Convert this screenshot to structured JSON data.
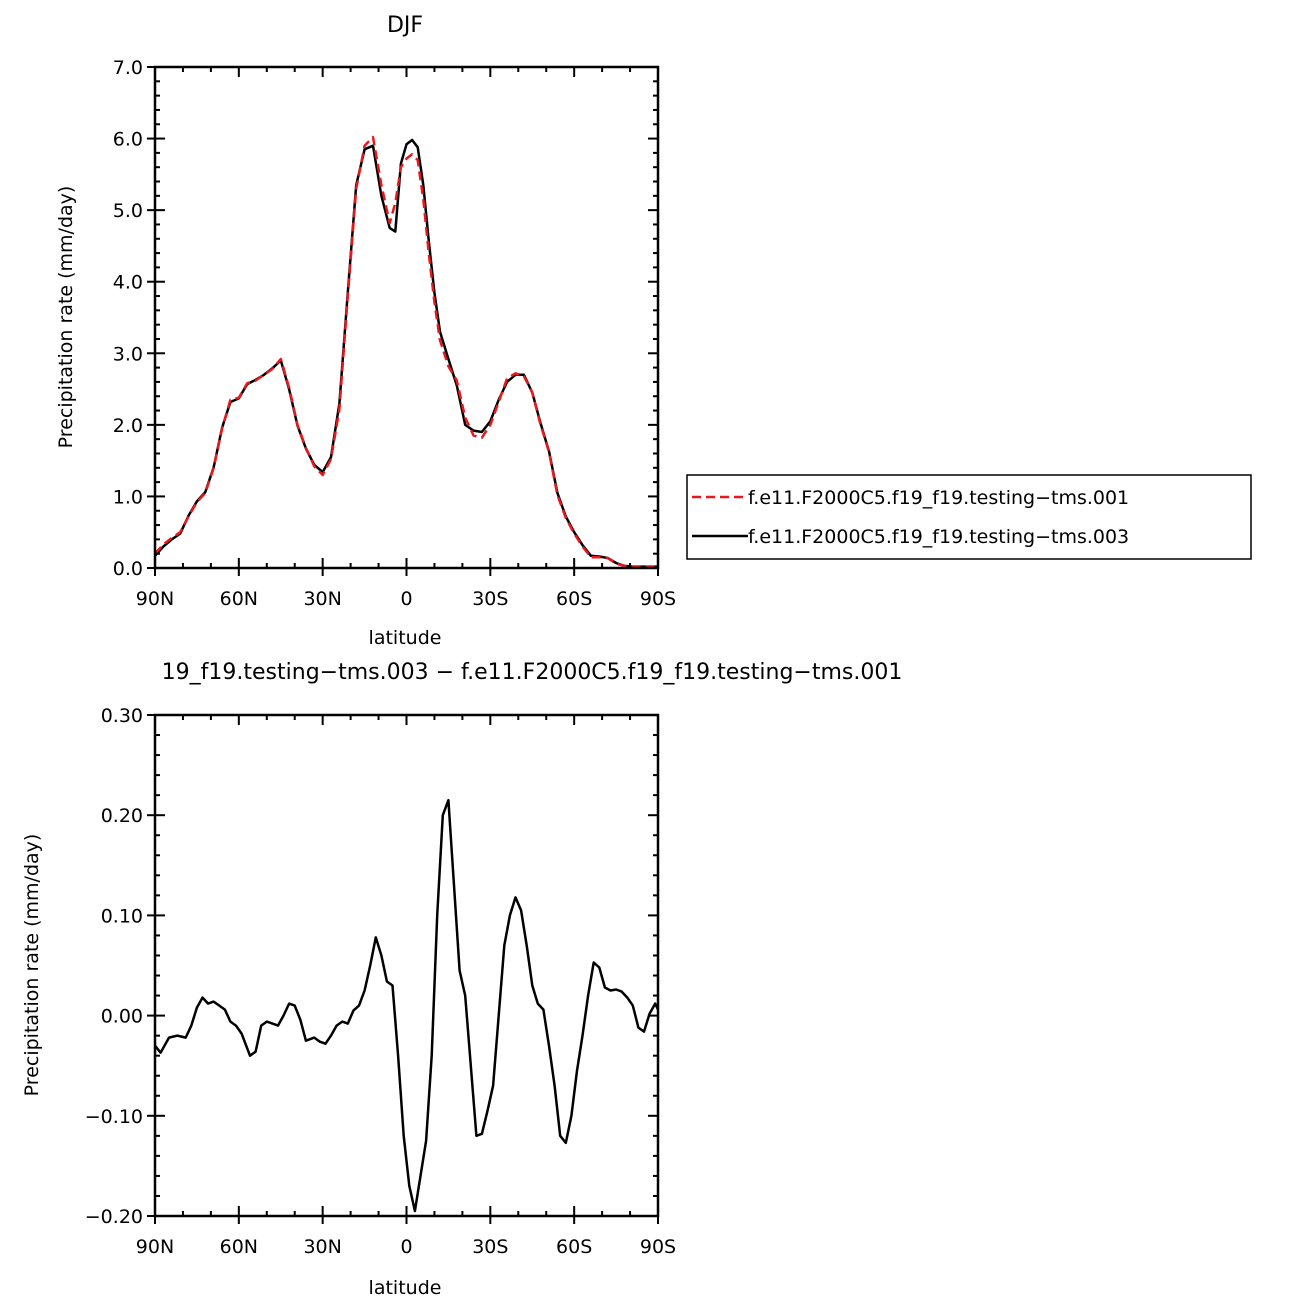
{
  "chart_data": [
    {
      "type": "line",
      "title": "DJF",
      "xlabel": "latitude",
      "ylabel": "Precipitation rate (mm/day)",
      "xlim": [
        -90,
        90
      ],
      "ylim": [
        0,
        7
      ],
      "x_ticks": [
        -90,
        -60,
        -30,
        0,
        30,
        60,
        90
      ],
      "x_tick_labels": [
        "90N",
        "60N",
        "30N",
        "0",
        "30S",
        "60S",
        "90S"
      ],
      "y_ticks": [
        0,
        1,
        2,
        3,
        4,
        5,
        6,
        7
      ],
      "y_tick_labels": [
        "0.0",
        "1.0",
        "2.0",
        "3.0",
        "4.0",
        "5.0",
        "6.0",
        "7.0"
      ],
      "grid": false,
      "legend_position": "right",
      "series": [
        {
          "name": "f.e11.F2000C5.f19_f19.testing−tms.001",
          "color": "#e8191e",
          "dash": "dashed",
          "x": [
            -90,
            -87,
            -84,
            -81,
            -78,
            -75,
            -72,
            -69,
            -66,
            -63,
            -60,
            -57,
            -54,
            -51,
            -48,
            -45,
            -42,
            -39,
            -36,
            -33,
            -30,
            -27,
            -24,
            -21,
            -18,
            -15,
            -12,
            -9,
            -6,
            -4,
            -2,
            0,
            2,
            4,
            6,
            8,
            10,
            12,
            15,
            18,
            21,
            24,
            27,
            30,
            33,
            36,
            39,
            42,
            45,
            48,
            51,
            54,
            57,
            60,
            63,
            66,
            69,
            72,
            75,
            78,
            81,
            84,
            87,
            90
          ],
          "y": [
            0.2,
            0.33,
            0.42,
            0.5,
            0.72,
            0.92,
            1.05,
            1.4,
            1.95,
            2.35,
            2.38,
            2.58,
            2.62,
            2.7,
            2.78,
            2.92,
            2.52,
            2.0,
            1.68,
            1.42,
            1.3,
            1.52,
            2.22,
            3.8,
            5.3,
            5.9,
            6.02,
            5.35,
            4.82,
            5.1,
            5.6,
            5.72,
            5.78,
            5.7,
            5.15,
            4.38,
            3.72,
            3.18,
            2.82,
            2.62,
            2.1,
            1.85,
            1.82,
            2.0,
            2.32,
            2.65,
            2.72,
            2.68,
            2.45,
            2.0,
            1.62,
            1.02,
            0.7,
            0.48,
            0.3,
            0.15,
            0.15,
            0.14,
            0.06,
            0.03,
            0.02,
            0.02,
            0.02,
            0.02
          ]
        },
        {
          "name": "f.e11.F2000C5.f19_f19.testing−tms.003",
          "color": "#000000",
          "dash": "solid",
          "x": [
            -90,
            -87,
            -84,
            -81,
            -78,
            -75,
            -72,
            -69,
            -66,
            -63,
            -60,
            -57,
            -54,
            -51,
            -48,
            -45,
            -42,
            -39,
            -36,
            -33,
            -30,
            -27,
            -24,
            -21,
            -18,
            -15,
            -12,
            -9,
            -6,
            -4,
            -2,
            0,
            2,
            4,
            6,
            8,
            10,
            12,
            15,
            18,
            21,
            24,
            27,
            30,
            33,
            36,
            39,
            42,
            45,
            48,
            51,
            54,
            57,
            60,
            63,
            66,
            69,
            72,
            75,
            78,
            81,
            84,
            87,
            90
          ],
          "y": [
            0.17,
            0.3,
            0.4,
            0.48,
            0.73,
            0.93,
            1.06,
            1.41,
            1.96,
            2.32,
            2.37,
            2.57,
            2.63,
            2.7,
            2.79,
            2.9,
            2.5,
            1.99,
            1.67,
            1.44,
            1.34,
            1.55,
            2.3,
            3.85,
            5.35,
            5.85,
            5.9,
            5.2,
            4.75,
            4.7,
            5.65,
            5.92,
            5.98,
            5.88,
            5.35,
            4.55,
            3.85,
            3.3,
            2.92,
            2.55,
            2.0,
            1.92,
            1.9,
            2.05,
            2.35,
            2.6,
            2.7,
            2.7,
            2.45,
            2.02,
            1.63,
            1.05,
            0.72,
            0.5,
            0.32,
            0.17,
            0.16,
            0.14,
            0.07,
            0.03,
            0.02,
            0.02,
            0.02,
            0.02
          ]
        }
      ]
    },
    {
      "type": "line",
      "title": "19_f19.testing−tms.003 − f.e11.F2000C5.f19_f19.testing−tms.001",
      "xlabel": "latitude",
      "ylabel": "Precipitation rate (mm/day)",
      "xlim": [
        -90,
        90
      ],
      "ylim": [
        -0.2,
        0.3
      ],
      "x_ticks": [
        -90,
        -60,
        -30,
        0,
        30,
        60,
        90
      ],
      "x_tick_labels": [
        "90N",
        "60N",
        "30N",
        "0",
        "30S",
        "60S",
        "90S"
      ],
      "y_ticks": [
        -0.2,
        -0.1,
        0.0,
        0.1,
        0.2,
        0.3
      ],
      "y_tick_labels": [
        "−0.20",
        "−0.10",
        "0.00",
        "0.10",
        "0.20",
        "0.30"
      ],
      "grid": false,
      "series": [
        {
          "color": "#000000",
          "dash": "solid",
          "x": [
            -90,
            -88,
            -85,
            -82,
            -79,
            -77,
            -75,
            -73,
            -71,
            -69,
            -67,
            -65,
            -63,
            -61,
            -59,
            -56,
            -54,
            -52,
            -50,
            -48,
            -46,
            -44,
            -42,
            -40,
            -38,
            -36,
            -33,
            -31,
            -29,
            -27,
            -25,
            -23,
            -21,
            -19,
            -17,
            -15,
            -13,
            -11,
            -9,
            -7,
            -5,
            -3,
            -1,
            1,
            3,
            5,
            7,
            9,
            11,
            13,
            15,
            17,
            19,
            21,
            23,
            25,
            27,
            29,
            31,
            33,
            35,
            37,
            39,
            41,
            43,
            45,
            47,
            49,
            51,
            53,
            55,
            57,
            59,
            61,
            63,
            65,
            67,
            69,
            71,
            73,
            75,
            77,
            79,
            81,
            83,
            85,
            87,
            89,
            90
          ],
          "y": [
            -0.03,
            -0.037,
            -0.022,
            -0.02,
            -0.022,
            -0.01,
            0.008,
            0.018,
            0.012,
            0.014,
            0.01,
            0.006,
            -0.006,
            -0.01,
            -0.018,
            -0.04,
            -0.036,
            -0.01,
            -0.006,
            -0.008,
            -0.01,
            0.0,
            0.012,
            0.01,
            -0.004,
            -0.025,
            -0.022,
            -0.026,
            -0.028,
            -0.02,
            -0.01,
            -0.006,
            -0.008,
            0.005,
            0.01,
            0.025,
            0.05,
            0.078,
            0.06,
            0.034,
            0.03,
            -0.04,
            -0.12,
            -0.17,
            -0.195,
            -0.16,
            -0.125,
            -0.04,
            0.1,
            0.2,
            0.215,
            0.13,
            0.045,
            0.02,
            -0.05,
            -0.12,
            -0.118,
            -0.095,
            -0.07,
            0.0,
            0.07,
            0.1,
            0.118,
            0.105,
            0.07,
            0.03,
            0.012,
            0.006,
            -0.03,
            -0.07,
            -0.12,
            -0.127,
            -0.1,
            -0.055,
            -0.02,
            0.02,
            0.053,
            0.048,
            0.028,
            0.025,
            0.026,
            0.024,
            0.018,
            0.01,
            -0.012,
            -0.016,
            0.002,
            0.012,
            0.006
          ]
        }
      ]
    }
  ]
}
